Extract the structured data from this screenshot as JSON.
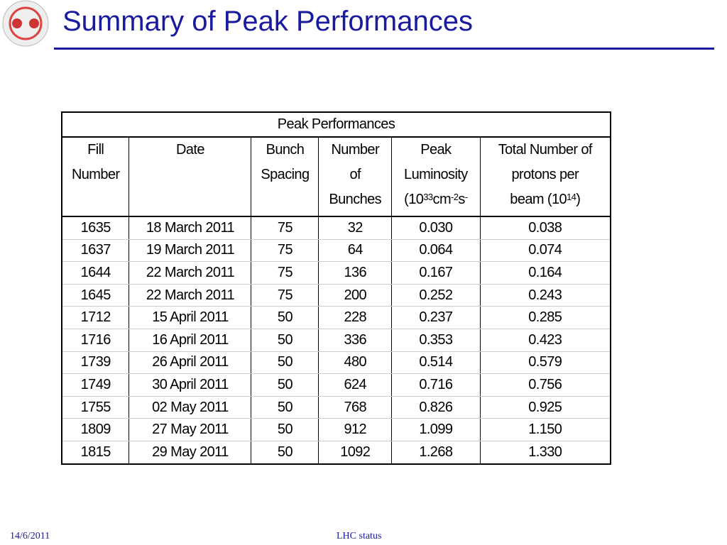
{
  "header": {
    "title": "Summary of Peak Performances"
  },
  "table": {
    "caption": "Peak Performances",
    "columns": [
      [
        [
          {
            "text": "Fill"
          }
        ],
        [
          {
            "text": "Number"
          }
        ]
      ],
      [
        [
          {
            "text": "Date"
          }
        ]
      ],
      [
        [
          {
            "text": "Bunch"
          }
        ],
        [
          {
            "text": "Spacing"
          }
        ]
      ],
      [
        [
          {
            "text": "Number"
          }
        ],
        [
          {
            "text": "of"
          }
        ],
        [
          {
            "text": "Bunches"
          }
        ]
      ],
      [
        [
          {
            "text": "Peak"
          }
        ],
        [
          {
            "text": "Luminosity"
          }
        ],
        [
          {
            "text": "(10"
          },
          {
            "sup": "33"
          },
          {
            "text": "cm"
          },
          {
            "sup": "-2"
          },
          {
            "text": "s"
          },
          {
            "sup": "-"
          }
        ]
      ],
      [
        [
          {
            "text": "Total Number of"
          }
        ],
        [
          {
            "text": "protons per"
          }
        ],
        [
          {
            "text": "beam  (10"
          },
          {
            "sup": "14"
          },
          {
            "text": ")"
          }
        ]
      ]
    ],
    "rows": [
      [
        "1635",
        "18 March 2011",
        "75",
        "32",
        "0.030",
        "0.038"
      ],
      [
        "1637",
        "19 March 2011",
        "75",
        "64",
        "0.064",
        "0.074"
      ],
      [
        "1644",
        "22 March 2011",
        "75",
        "136",
        "0.167",
        "0.164"
      ],
      [
        "1645",
        "22 March 2011",
        "75",
        "200",
        "0.252",
        "0.243"
      ],
      [
        "1712",
        "15 April 2011",
        "50",
        "228",
        "0.237",
        "0.285"
      ],
      [
        "1716",
        "16 April 2011",
        "50",
        "336",
        "0.353",
        "0.423"
      ],
      [
        "1739",
        "26 April 2011",
        "50",
        "480",
        "0.514",
        "0.579"
      ],
      [
        "1749",
        "30 April 2011",
        "50",
        "624",
        "0.716",
        "0.756"
      ],
      [
        "1755",
        "02 May 2011",
        "50",
        "768",
        "0.826",
        "0.925"
      ],
      [
        "1809",
        "27 May 2011",
        "50",
        "912",
        "1.099",
        "1.150"
      ],
      [
        "1815",
        "29 May 2011",
        "50",
        "1092",
        "1.268",
        "1.330"
      ]
    ]
  },
  "footer": {
    "date": "14/6/2011",
    "center": "LHC status"
  }
}
